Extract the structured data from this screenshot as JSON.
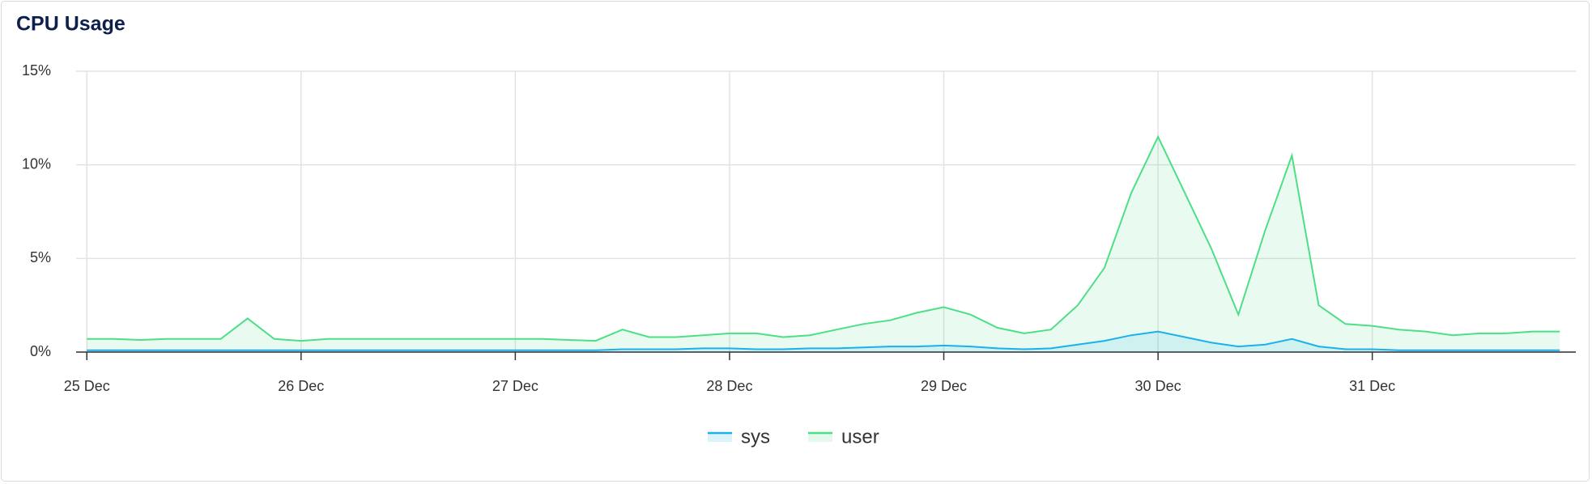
{
  "chart_data": {
    "type": "area",
    "title": "CPU Usage",
    "x": [
      25,
      25.125,
      25.25,
      25.375,
      25.5,
      25.625,
      25.75,
      25.875,
      26,
      26.125,
      26.25,
      26.375,
      26.5,
      26.625,
      26.75,
      26.875,
      27,
      27.125,
      27.25,
      27.375,
      27.5,
      27.625,
      27.75,
      27.875,
      28,
      28.125,
      28.25,
      28.375,
      28.5,
      28.625,
      28.75,
      28.875,
      29,
      29.125,
      29.25,
      29.375,
      29.5,
      29.625,
      29.75,
      29.875,
      30,
      30.125,
      30.25,
      30.375,
      30.5,
      30.625,
      30.75,
      30.875,
      31,
      31.125,
      31.25,
      31.375,
      31.5,
      31.625,
      31.75,
      31.875
    ],
    "series": [
      {
        "name": "sys",
        "color": "#1cb0ec",
        "values": [
          0.1,
          0.1,
          0.1,
          0.1,
          0.1,
          0.1,
          0.1,
          0.1,
          0.1,
          0.1,
          0.1,
          0.1,
          0.1,
          0.1,
          0.1,
          0.1,
          0.1,
          0.1,
          0.1,
          0.1,
          0.15,
          0.15,
          0.15,
          0.2,
          0.2,
          0.15,
          0.15,
          0.2,
          0.2,
          0.25,
          0.3,
          0.3,
          0.35,
          0.3,
          0.2,
          0.15,
          0.2,
          0.4,
          0.6,
          0.9,
          1.1,
          0.8,
          0.5,
          0.3,
          0.4,
          0.7,
          0.3,
          0.15,
          0.15,
          0.1,
          0.1,
          0.1,
          0.1,
          0.1,
          0.1,
          0.1
        ]
      },
      {
        "name": "user",
        "color": "#4ddf86",
        "values": [
          0.7,
          0.7,
          0.65,
          0.7,
          0.7,
          0.7,
          1.8,
          0.7,
          0.6,
          0.7,
          0.7,
          0.7,
          0.7,
          0.7,
          0.7,
          0.7,
          0.7,
          0.7,
          0.65,
          0.6,
          1.2,
          0.8,
          0.8,
          0.9,
          1.0,
          1.0,
          0.8,
          0.9,
          1.2,
          1.5,
          1.7,
          2.1,
          2.4,
          2.0,
          1.3,
          1.0,
          1.2,
          2.5,
          4.5,
          8.5,
          11.5,
          8.5,
          5.5,
          2.0,
          6.5,
          10.5,
          2.5,
          1.5,
          1.4,
          1.2,
          1.1,
          0.9,
          1.0,
          1.0,
          1.1,
          1.1
        ]
      }
    ],
    "xlim": [
      24.95,
      31.95
    ],
    "xticks": [
      {
        "value": 25,
        "label": "25 Dec"
      },
      {
        "value": 26,
        "label": "26 Dec"
      },
      {
        "value": 27,
        "label": "27 Dec"
      },
      {
        "value": 28,
        "label": "28 Dec"
      },
      {
        "value": 29,
        "label": "29 Dec"
      },
      {
        "value": 30,
        "label": "30 Dec"
      },
      {
        "value": 31,
        "label": "31 Dec"
      }
    ],
    "ylim": [
      0,
      15
    ],
    "yticks": [
      {
        "value": 0,
        "label": "0%"
      },
      {
        "value": 5,
        "label": "5%"
      },
      {
        "value": 10,
        "label": "10%"
      },
      {
        "value": 15,
        "label": "15%"
      }
    ],
    "grid": true
  }
}
